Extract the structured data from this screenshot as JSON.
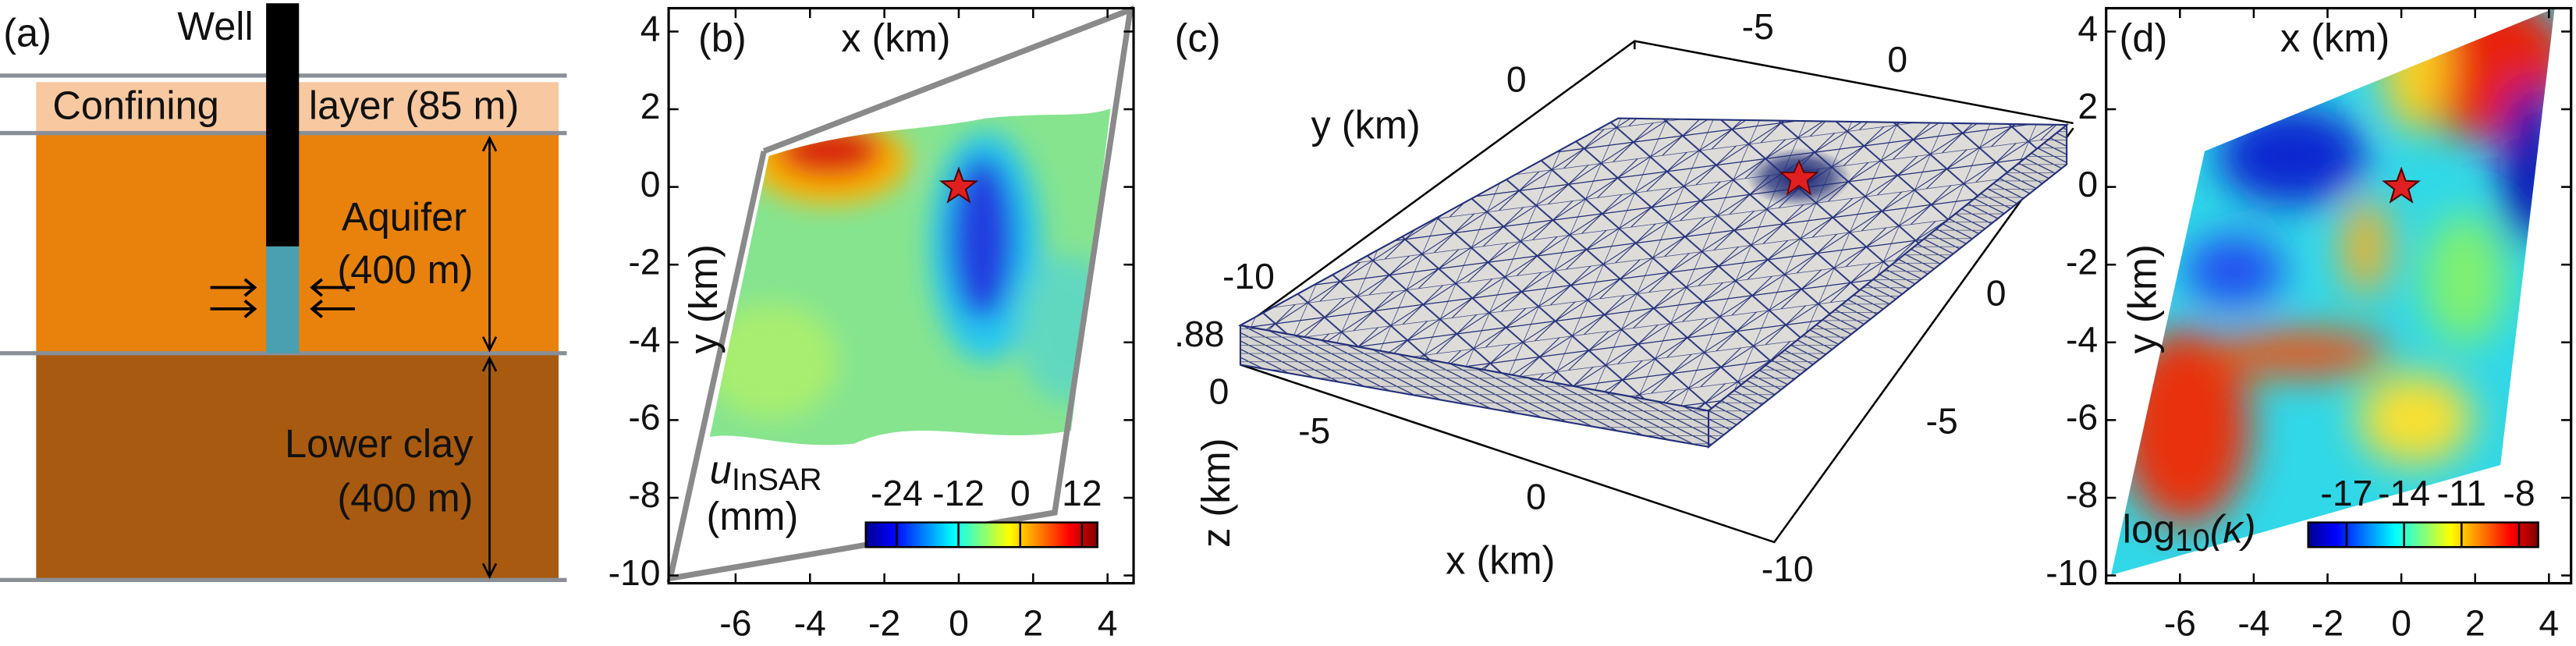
{
  "panel_a": {
    "label": "(a)",
    "well": "Well",
    "confining_1": "Confining",
    "confining_2": "layer (85 m)",
    "aquifer_1": "Aquifer",
    "aquifer_2": "(400 m)",
    "clay_1": "Lower clay",
    "clay_2": "(400 m)"
  },
  "panel_b": {
    "label": "(b)",
    "xlabel": "x (km)",
    "ylabel": "y (km)",
    "xlim": [
      -7.8,
      4.7
    ],
    "ylim": [
      -10.2,
      4.6
    ],
    "xticks": [
      -6,
      -4,
      -2,
      0,
      2,
      4
    ],
    "yticks": [
      -10,
      -8,
      -6,
      -4,
      -2,
      0,
      2,
      4
    ],
    "well": {
      "x": 0,
      "y": 0
    },
    "colorbar": {
      "symbol": "u",
      "subscript": "InSAR",
      "unit": "(mm)",
      "lim": [
        -30,
        15
      ],
      "ticks": [
        -24,
        -12,
        0,
        12
      ]
    }
  },
  "panel_c": {
    "label": "(c)",
    "xlabel": "x (km)",
    "ylabel": "y (km)",
    "zlabel": "z (km)",
    "front_x_ticks": [
      -5,
      0
    ],
    "back_x_ticks": [
      -5,
      0
    ],
    "left_y_ticks": [
      -10,
      0
    ],
    "right_y_ticks": [
      -10,
      -5,
      0
    ],
    "z_ticks": [
      {
        "value": 0.88,
        "label": ".88"
      },
      0
    ]
  },
  "panel_d": {
    "label": "(d)",
    "xlabel": "x (km)",
    "ylabel": "y (km)",
    "xlim": [
      -8,
      4.6
    ],
    "ylim": [
      -10.2,
      4.6
    ],
    "xticks": [
      -6,
      -4,
      -2,
      0,
      2,
      4
    ],
    "yticks": [
      -10,
      -8,
      -6,
      -4,
      -2,
      0,
      2,
      4
    ],
    "well": {
      "x": 0,
      "y": 0
    },
    "colorbar": {
      "base": "log",
      "subscript": "10",
      "argument": "(κ)",
      "lim": [
        -19,
        -7
      ],
      "ticks": [
        -17,
        -14,
        -11,
        -8
      ]
    }
  }
}
